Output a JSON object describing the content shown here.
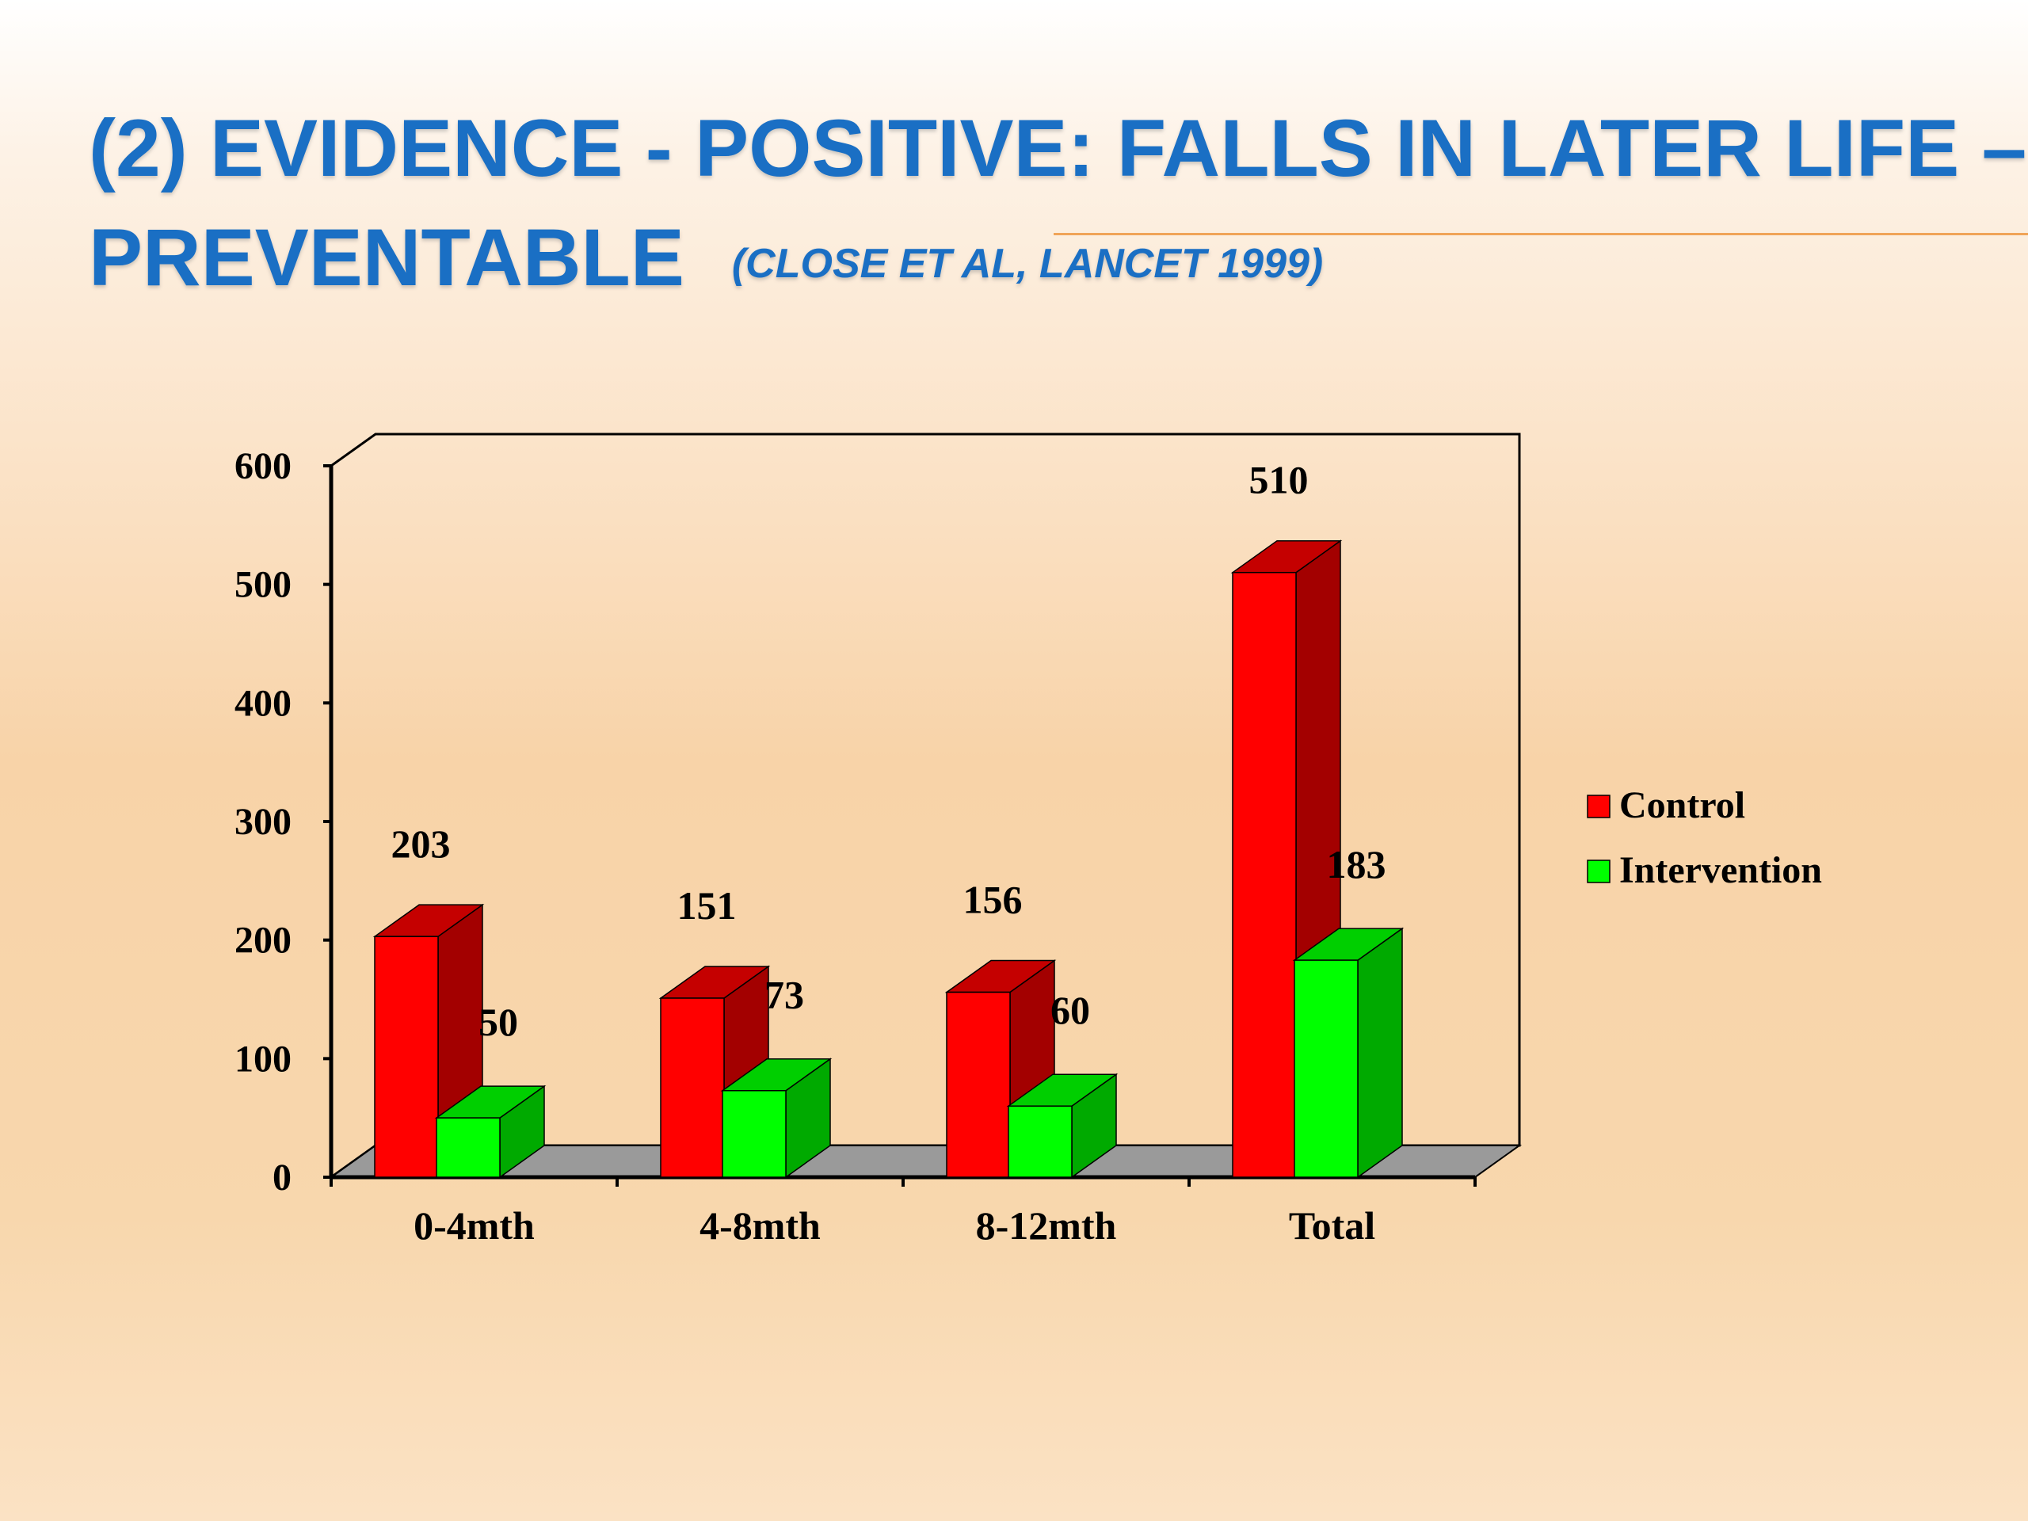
{
  "slide": {
    "title_line1": "(2) Evidence - Positive: Falls in later life –",
    "title_line2": "Preventable",
    "citation": "(Close  et al, Lancet 1999)"
  },
  "colors": {
    "title": "#1a6fc4",
    "accent_rule": "#f0a458",
    "control": "#ff0000",
    "intervention": "#00ff00"
  },
  "chart_data": {
    "type": "bar",
    "style": "3d-clustered-column",
    "categories": [
      "0-4mth",
      "4-8mth",
      "8-12mth",
      "Total"
    ],
    "series": [
      {
        "name": "Control",
        "values": [
          203,
          151,
          156,
          510
        ]
      },
      {
        "name": "Intervention",
        "values": [
          50,
          73,
          60,
          183
        ]
      }
    ],
    "y_ticks": [
      "0",
      "100",
      "200",
      "300",
      "400",
      "500",
      "600"
    ],
    "ylim": [
      0,
      600
    ],
    "grid": false,
    "legend_position": "right",
    "data_labels": true
  }
}
